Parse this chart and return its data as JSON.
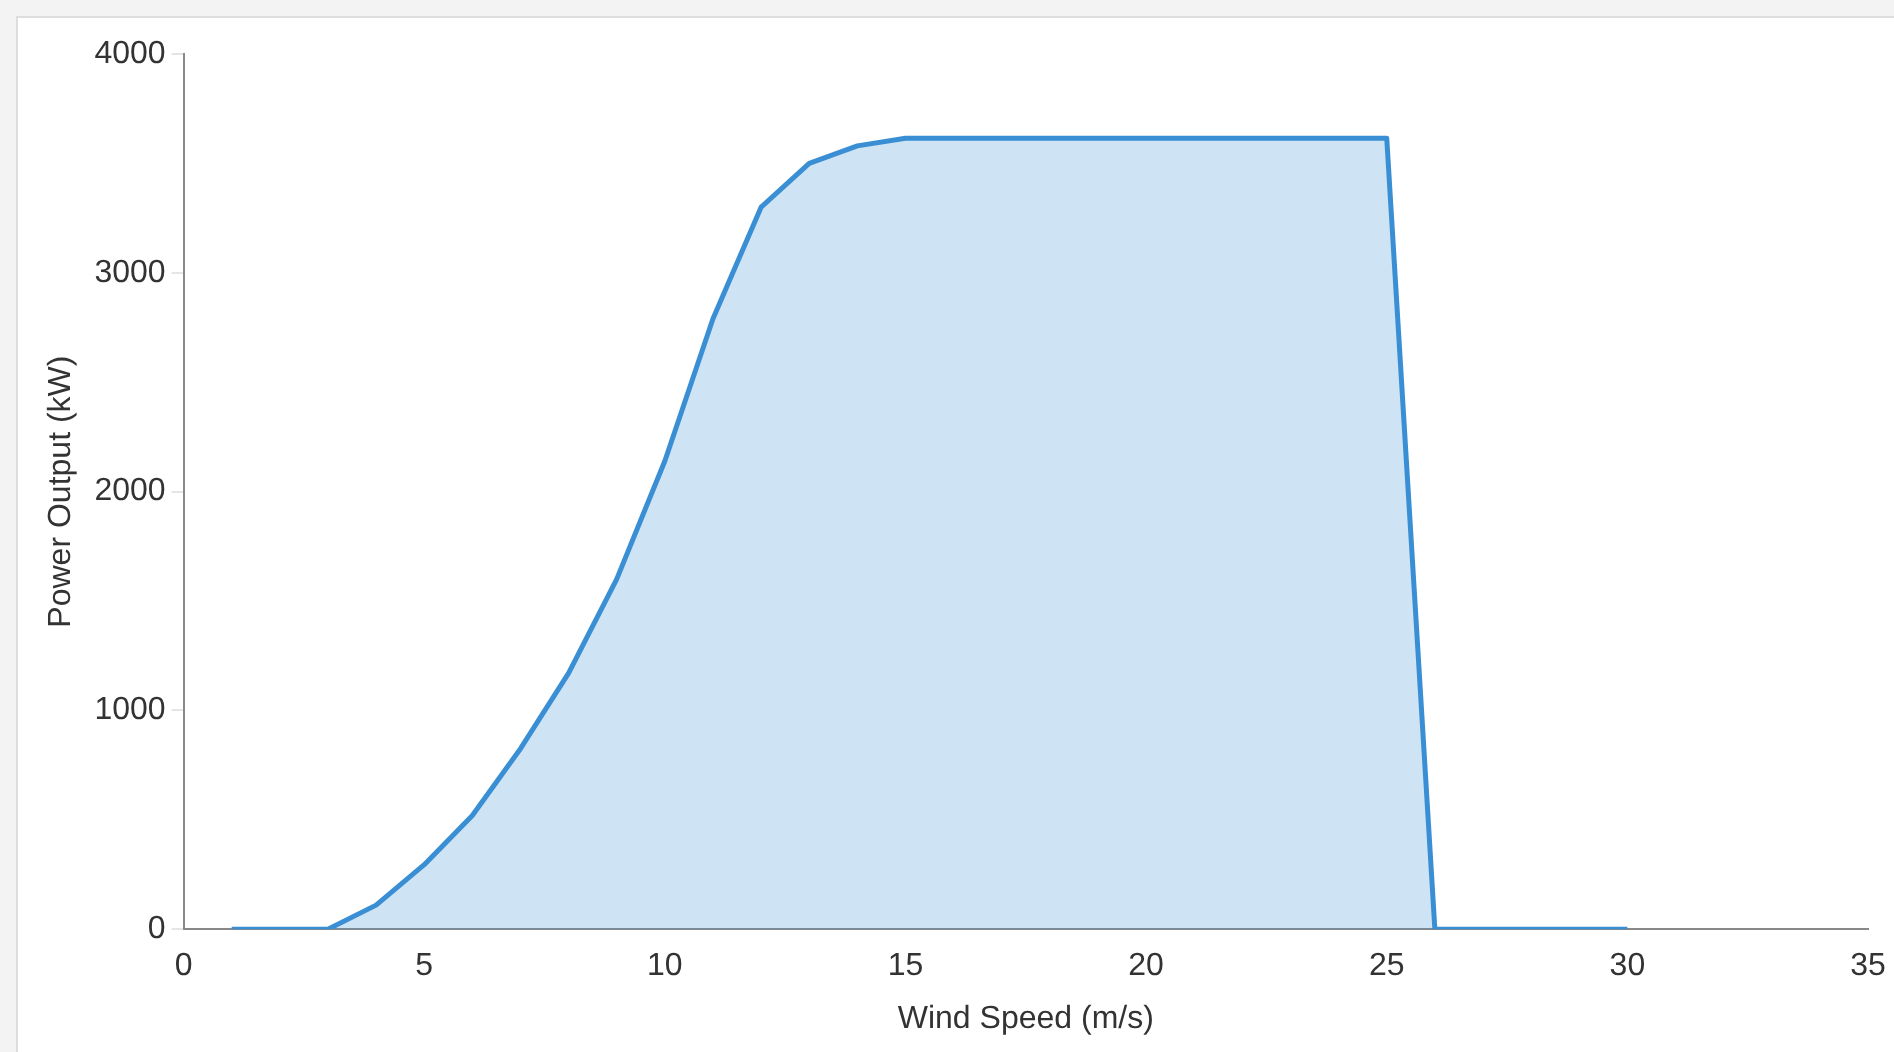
{
  "chart_data": {
    "type": "area",
    "xlabel": "Wind Speed (m/s)",
    "ylabel": "Power Output (kW)",
    "x": [
      1,
      2,
      3,
      4,
      5,
      6,
      7,
      8,
      9,
      10,
      11,
      12,
      13,
      14,
      15,
      16,
      17,
      18,
      19,
      20,
      21,
      22,
      23,
      24,
      25,
      26,
      27,
      28,
      29,
      30
    ],
    "series": [
      {
        "color": "#3a8fd4",
        "values": [
          0,
          0,
          0,
          110,
          295,
          520,
          825,
          1170,
          1600,
          2140,
          2790,
          3300,
          3500,
          3580,
          3615,
          3615,
          3615,
          3615,
          3615,
          3615,
          3615,
          3615,
          3615,
          3615,
          3615,
          0,
          0,
          0,
          0,
          0
        ]
      }
    ],
    "xlim": [
      0,
      35
    ],
    "xticks": [
      0,
      5,
      10,
      15,
      20,
      25,
      30,
      35
    ],
    "ylim": [
      0,
      4000
    ],
    "yticks": [
      0,
      1000,
      2000,
      3000,
      4000
    ],
    "grid": false,
    "legend": false,
    "marker": "none",
    "line_style": "solid"
  }
}
